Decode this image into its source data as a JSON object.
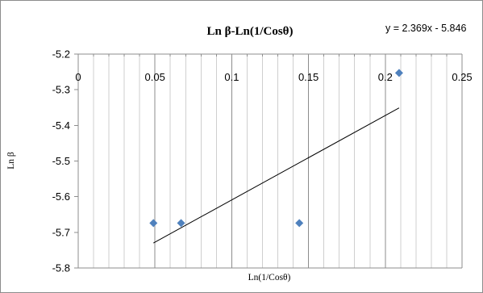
{
  "chart_data": {
    "type": "scatter",
    "title": "Ln β-Ln(1/Cosθ)",
    "xlabel": "Ln(1/Cosθ)",
    "ylabel": "Ln β",
    "xlim": [
      0,
      0.25
    ],
    "ylim": [
      -5.8,
      -5.2
    ],
    "x_ticks": [
      0,
      0.05,
      0.1,
      0.15,
      0.2,
      0.25
    ],
    "x_tick_labels": [
      "0",
      "0.05",
      "0.1",
      "0.15",
      "0.2",
      "0.25"
    ],
    "y_ticks": [
      -5.2,
      -5.3,
      -5.4,
      -5.5,
      -5.6,
      -5.7,
      -5.8
    ],
    "y_tick_labels": [
      "-5.2",
      "-5.3",
      "-5.4",
      "-5.5",
      "-5.6",
      "-5.7",
      "-5.8"
    ],
    "grid": "major and minor vertical gridlines",
    "series": [
      {
        "marker": "diamond",
        "color": "#4f81bd",
        "x": [
          0.049,
          0.067,
          0.144,
          0.209
        ],
        "y": [
          -5.674,
          -5.674,
          -5.674,
          -5.253
        ]
      }
    ],
    "trendline": {
      "equation_label": "y = 2.369x - 5.846",
      "slope": 2.369,
      "intercept": -5.846,
      "x_range": [
        0.049,
        0.209
      ],
      "color": "#000000"
    }
  }
}
